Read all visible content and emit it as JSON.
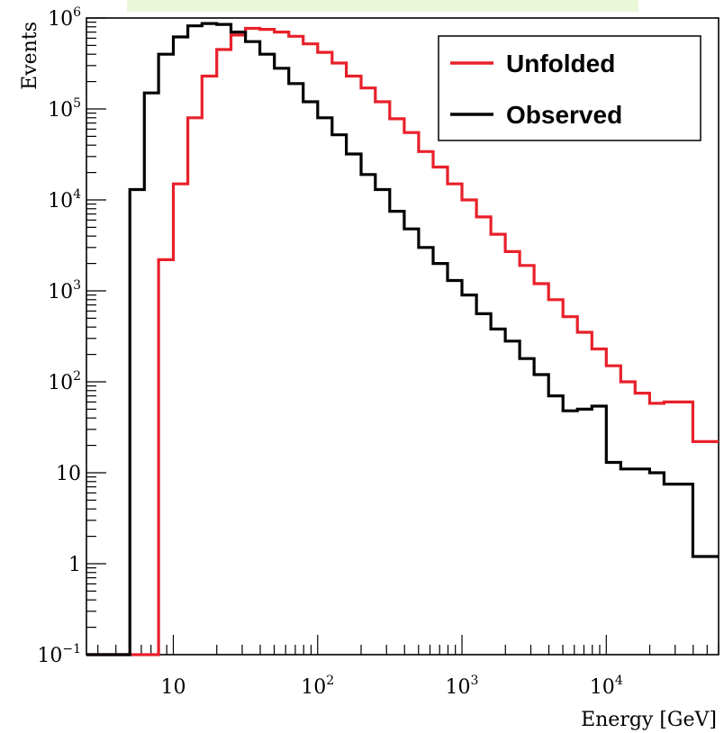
{
  "chart_data": {
    "type": "line",
    "subtype": "step-histogram",
    "xlabel": "Energy [GeV]",
    "ylabel": "Events",
    "xscale": "log",
    "yscale": "log",
    "xlim": [
      2.5,
      60000
    ],
    "ylim": [
      0.1,
      1000000
    ],
    "x_ticks": [
      {
        "label": "10",
        "base": "10",
        "exp": ""
      },
      {
        "label": "10^2",
        "base": "10",
        "exp": "2"
      },
      {
        "label": "10^3",
        "base": "10",
        "exp": "3"
      },
      {
        "label": "10^4",
        "base": "10",
        "exp": "4"
      }
    ],
    "y_ticks": [
      {
        "label": "10^-1",
        "base": "10",
        "exp": "−1"
      },
      {
        "label": "1",
        "base": "1",
        "exp": ""
      },
      {
        "label": "10",
        "base": "10",
        "exp": ""
      },
      {
        "label": "10^2",
        "base": "10",
        "exp": "2"
      },
      {
        "label": "10^3",
        "base": "10",
        "exp": "3"
      },
      {
        "label": "10^4",
        "base": "10",
        "exp": "4"
      },
      {
        "label": "10^5",
        "base": "10",
        "exp": "5"
      },
      {
        "label": "10^6",
        "base": "10",
        "exp": "6"
      }
    ],
    "legend": {
      "position": "top-right"
    },
    "bin_edges": [
      2.5,
      5.0,
      6.3,
      7.9,
      10,
      12.6,
      15.8,
      20,
      25.1,
      31.6,
      39.8,
      50.1,
      63.1,
      79.4,
      100,
      126,
      158,
      200,
      251,
      316,
      398,
      501,
      631,
      794,
      1000,
      1259,
      1585,
      1995,
      2512,
      3162,
      3981,
      5012,
      6310,
      7943,
      10000,
      12589,
      15849,
      19953,
      25119,
      31623,
      39811,
      60000
    ],
    "series": [
      {
        "name": "Unfolded",
        "color": "#e8202a",
        "values": [
          0.1,
          0.1,
          0.1,
          2200,
          15000,
          80000,
          230000,
          450000,
          650000,
          770000,
          750000,
          700000,
          630000,
          520000,
          420000,
          320000,
          230000,
          170000,
          120000,
          78000,
          55000,
          34000,
          23000,
          15000,
          10000,
          6500,
          4200,
          2700,
          1900,
          1200,
          800,
          520,
          350,
          230,
          150,
          100,
          75,
          58,
          60,
          60,
          22
        ]
      },
      {
        "name": "Observed",
        "color": "#000000",
        "values": [
          0.1,
          13000,
          150000,
          400000,
          620000,
          820000,
          870000,
          850000,
          700000,
          550000,
          400000,
          280000,
          190000,
          120000,
          80000,
          52000,
          32000,
          19000,
          13000,
          7500,
          4800,
          3000,
          2000,
          1300,
          900,
          560,
          380,
          280,
          180,
          120,
          70,
          48,
          50,
          54,
          13,
          11,
          11,
          10,
          7.5,
          7.5,
          1.2
        ]
      }
    ]
  }
}
